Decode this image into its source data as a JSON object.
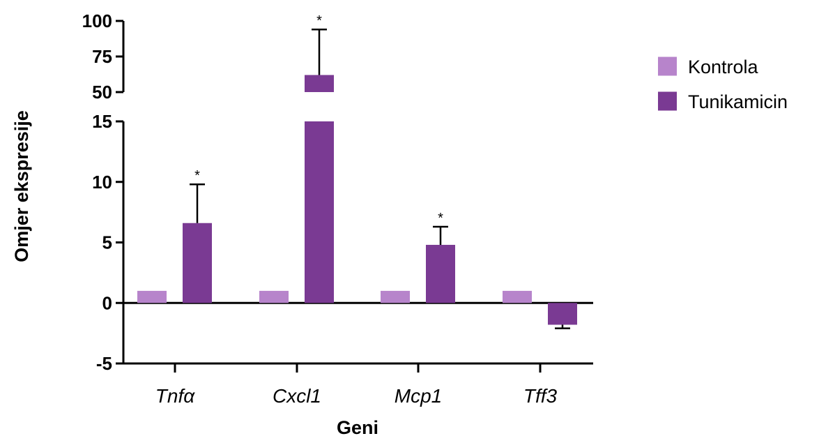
{
  "chart_data": {
    "type": "bar",
    "xlabel": "Geni",
    "ylabel": "Omjer ekspresije",
    "categories": [
      "Tnfα",
      "Cxcl1",
      "Mcp1",
      "Tff3"
    ],
    "series": [
      {
        "name": "Kontrola",
        "color": "#b784cb",
        "values": [
          1,
          1,
          1,
          1
        ],
        "error": [
          0,
          0,
          0,
          0
        ],
        "significant": [
          false,
          false,
          false,
          false
        ]
      },
      {
        "name": "Tunikamicin",
        "color": "#7a3a93",
        "values": [
          6.6,
          62,
          4.8,
          -1.8
        ],
        "error": [
          3.2,
          32,
          1.5,
          0.3
        ],
        "significant": [
          true,
          true,
          true,
          false
        ]
      }
    ],
    "axis_break": {
      "lower_range": [
        -5,
        15
      ],
      "upper_range": [
        50,
        100
      ]
    },
    "lower_ticks": [
      "-5",
      "0",
      "5",
      "10",
      "15"
    ],
    "upper_ticks": [
      "50",
      "75",
      "100"
    ],
    "significance_marker": "*",
    "legend": {
      "placement": "right",
      "entries": [
        "Kontrola",
        "Tunikamicin"
      ]
    },
    "grid": false
  }
}
